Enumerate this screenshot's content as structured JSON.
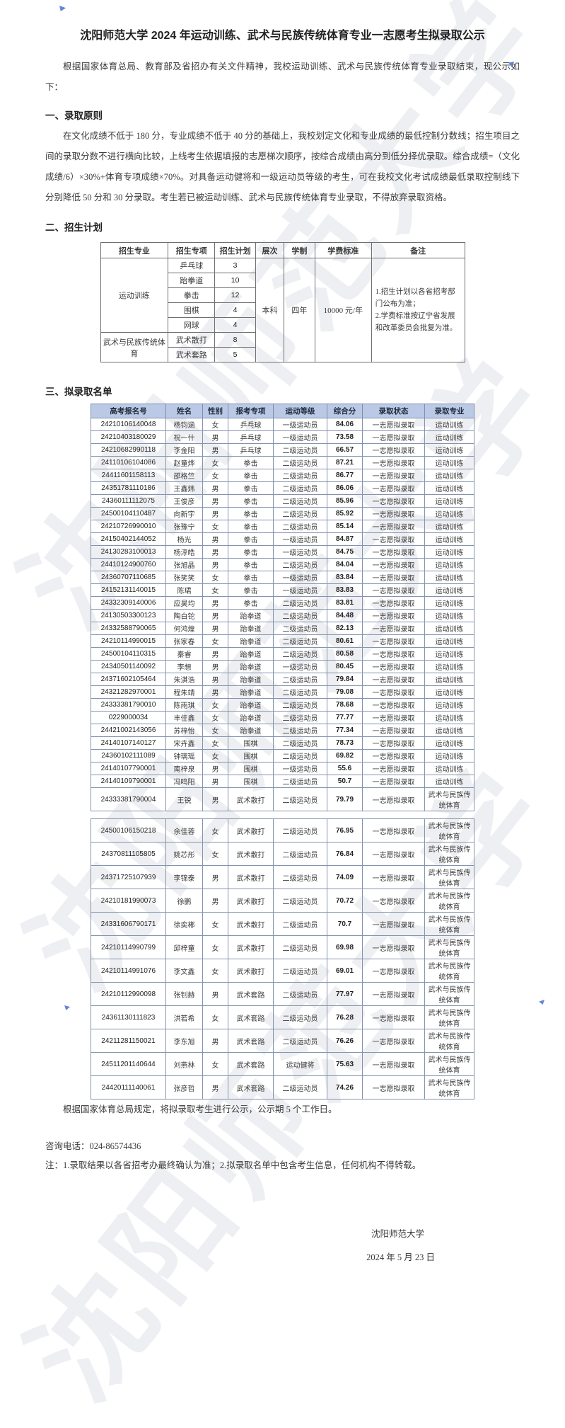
{
  "watermark_text": "沈阳师范大学",
  "accent_colors": {
    "list_header_bg": "#b9c9e6",
    "annotation_mark": "#4a6fd4"
  },
  "document": {
    "title": "沈阳师范大学 2024 年运动训练、武术与民族传统体育专业一志愿考生拟录取公示",
    "intro": "根据国家体育总局、教育部及省招办有关文件精神，我校运动训练、武术与民族传统体育专业录取结束，现公示如下：",
    "section1": {
      "heading": "一、录取原则",
      "body": "在文化成绩不低于 180 分，专业成绩不低于 40 分的基础上，我校划定文化和专业成绩的最低控制分数线；招生项目之间的录取分数不进行横向比较，上线考生依据填报的志愿梯次顺序，按综合成绩由高分到低分择优录取。综合成绩=（文化成绩/6）×30%+体育专项成绩×70%。对具备运动健将和一级运动员等级的考生，可在我校文化考试成绩最低录取控制线下分别降低 50 分和 30 分录取。考生若已被运动训练、武术与民族传统体育专业录取，不得放弃录取资格。"
    },
    "section2": {
      "heading": "二、招生计划",
      "table": {
        "headers": [
          "招生专业",
          "招生专项",
          "招生计划",
          "层次",
          "学制",
          "学费标准",
          "备注"
        ],
        "groups": [
          {
            "major": "运动训练",
            "items": [
              [
                "乒乓球",
                "3"
              ],
              [
                "跆拳道",
                "10"
              ],
              [
                "拳击",
                "12"
              ],
              [
                "围棋",
                "4"
              ],
              [
                "网球",
                "4"
              ]
            ]
          },
          {
            "major": "武术与民族传统体育",
            "items": [
              [
                "武术散打",
                "8"
              ],
              [
                "武术套路",
                "5"
              ]
            ]
          }
        ],
        "level": "本科",
        "years": "四年",
        "tuition": "10000 元/年",
        "note1": "1.招生计划以各省招考部门公布为准；",
        "note2": "2.学费标准按辽宁省发展和改革委员会批复为准。"
      }
    },
    "section3": {
      "heading": "三、拟录取名单",
      "headers": [
        "高考报名号",
        "姓名",
        "性别",
        "报考专项",
        "运动等级",
        "综合分",
        "录取状态",
        "录取专业"
      ],
      "block1": [
        [
          "24210106140048",
          "杨钧涵",
          "女",
          "乒乓球",
          "一级运动员",
          "84.06",
          "一志愿拟录取",
          "运动训练"
        ],
        [
          "24210403180029",
          "祝一什",
          "男",
          "乒乓球",
          "一级运动员",
          "73.58",
          "一志愿拟录取",
          "运动训练"
        ],
        [
          "24210682990118",
          "李金阳",
          "男",
          "乒乓球",
          "二级运动员",
          "66.57",
          "一志愿拟录取",
          "运动训练"
        ],
        [
          "24110106104086",
          "赵童烨",
          "女",
          "拳击",
          "二级运动员",
          "87.21",
          "一志愿拟录取",
          "运动训练"
        ],
        [
          "24411601158113",
          "邵格竺",
          "女",
          "拳击",
          "二级运动员",
          "86.77",
          "一志愿拟录取",
          "运动训练"
        ],
        [
          "24351781110186",
          "王鑫炜",
          "男",
          "拳击",
          "二级运动员",
          "86.06",
          "一志愿拟录取",
          "运动训练"
        ],
        [
          "24360111112075",
          "王俊彦",
          "男",
          "拳击",
          "二级运动员",
          "85.96",
          "一志愿拟录取",
          "运动训练"
        ],
        [
          "24500104110487",
          "向新宇",
          "男",
          "拳击",
          "二级运动员",
          "85.92",
          "一志愿拟录取",
          "运动训练"
        ],
        [
          "24210726990010",
          "张豫宁",
          "女",
          "拳击",
          "二级运动员",
          "85.14",
          "一志愿拟录取",
          "运动训练"
        ],
        [
          "24150402144052",
          "杨光",
          "男",
          "拳击",
          "一级运动员",
          "84.87",
          "一志愿拟录取",
          "运动训练"
        ],
        [
          "24130283100013",
          "杨淳皓",
          "男",
          "拳击",
          "一级运动员",
          "84.75",
          "一志愿拟录取",
          "运动训练"
        ],
        [
          "24410124900760",
          "张旭晶",
          "男",
          "拳击",
          "二级运动员",
          "84.04",
          "一志愿拟录取",
          "运动训练"
        ],
        [
          "24360707110685",
          "张笑笑",
          "女",
          "拳击",
          "一级运动员",
          "83.84",
          "一志愿拟录取",
          "运动训练"
        ],
        [
          "24152131140015",
          "陈珺",
          "女",
          "拳击",
          "一级运动员",
          "83.83",
          "一志愿拟录取",
          "运动训练"
        ],
        [
          "24332309140006",
          "应昊均",
          "男",
          "拳击",
          "二级运动员",
          "83.81",
          "一志愿拟录取",
          "运动训练"
        ],
        [
          "24130503300123",
          "陶白铊",
          "男",
          "跆拳道",
          "二级运动员",
          "84.48",
          "一志愿拟录取",
          "运动训练"
        ],
        [
          "24332588790065",
          "何鸿煌",
          "男",
          "跆拳道",
          "二级运动员",
          "82.13",
          "一志愿拟录取",
          "运动训练"
        ],
        [
          "24210114990015",
          "张家春",
          "女",
          "跆拳道",
          "二级运动员",
          "80.61",
          "一志愿拟录取",
          "运动训练"
        ],
        [
          "24500104110315",
          "秦睿",
          "男",
          "跆拳道",
          "二级运动员",
          "80.58",
          "一志愿拟录取",
          "运动训练"
        ],
        [
          "24340501140092",
          "李想",
          "男",
          "跆拳道",
          "一级运动员",
          "80.45",
          "一志愿拟录取",
          "运动训练"
        ],
        [
          "24371602105464",
          "朱淇浩",
          "男",
          "跆拳道",
          "二级运动员",
          "79.84",
          "一志愿拟录取",
          "运动训练"
        ],
        [
          "24321282970001",
          "程朱靖",
          "男",
          "跆拳道",
          "二级运动员",
          "79.08",
          "一志愿拟录取",
          "运动训练"
        ],
        [
          "24333381790010",
          "陈雨琪",
          "女",
          "跆拳道",
          "二级运动员",
          "78.68",
          "一志愿拟录取",
          "运动训练"
        ],
        [
          "0229000034",
          "丰佳鑫",
          "女",
          "跆拳道",
          "二级运动员",
          "77.77",
          "一志愿拟录取",
          "运动训练"
        ],
        [
          "24421002143056",
          "苏梓怡",
          "女",
          "跆拳道",
          "二级运动员",
          "77.34",
          "一志愿拟录取",
          "运动训练"
        ],
        [
          "24140107140127",
          "宋卉鑫",
          "女",
          "围棋",
          "二级运动员",
          "78.73",
          "一志愿拟录取",
          "运动训练"
        ],
        [
          "24360102111089",
          "钟璃瑶",
          "女",
          "围棋",
          "二级运动员",
          "69.82",
          "一志愿拟录取",
          "运动训练"
        ],
        [
          "24140107790001",
          "南梓泉",
          "男",
          "围棋",
          "一级运动员",
          "55.6",
          "一志愿拟录取",
          "运动训练"
        ],
        [
          "24140109790001",
          "冯鸣阳",
          "男",
          "围棋",
          "二级运动员",
          "50.7",
          "一志愿拟录取",
          "运动训练"
        ],
        [
          "24333381790004",
          "王锐",
          "男",
          "武术散打",
          "二级运动员",
          "79.79",
          "一志愿拟录取",
          "武术与民族传统体育"
        ]
      ],
      "block2": [
        [
          "24500106150218",
          "余佳蓉",
          "女",
          "武术散打",
          "二级运动员",
          "76.95",
          "一志愿拟录取",
          "武术与民族传统体育"
        ],
        [
          "24370811105805",
          "姚芯彤",
          "女",
          "武术散打",
          "二级运动员",
          "76.84",
          "一志愿拟录取",
          "武术与民族传统体育"
        ],
        [
          "24371725107939",
          "李锦泰",
          "男",
          "武术散打",
          "二级运动员",
          "74.09",
          "一志愿拟录取",
          "武术与民族传统体育"
        ],
        [
          "24210181990073",
          "徐鹏",
          "男",
          "武术散打",
          "二级运动员",
          "70.72",
          "一志愿拟录取",
          "武术与民族传统体育"
        ],
        [
          "24331606790171",
          "徐奕郴",
          "女",
          "武术散打",
          "二级运动员",
          "70.7",
          "一志愿拟录取",
          "武术与民族传统体育"
        ],
        [
          "24210114990799",
          "邱梓童",
          "女",
          "武术散打",
          "二级运动员",
          "69.98",
          "一志愿拟录取",
          "武术与民族传统体育"
        ],
        [
          "24210114991076",
          "李文鑫",
          "女",
          "武术散打",
          "二级运动员",
          "69.01",
          "一志愿拟录取",
          "武术与民族传统体育"
        ],
        [
          "24210112990098",
          "张钊赫",
          "男",
          "武术套路",
          "二级运动员",
          "77.97",
          "一志愿拟录取",
          "武术与民族传统体育"
        ],
        [
          "24361130111823",
          "洪若希",
          "女",
          "武术套路",
          "二级运动员",
          "76.28",
          "一志愿拟录取",
          "武术与民族传统体育"
        ],
        [
          "24211281150021",
          "李东旭",
          "男",
          "武术套路",
          "二级运动员",
          "76.26",
          "一志愿拟录取",
          "武术与民族传统体育"
        ],
        [
          "24511201140644",
          "刘燕林",
          "女",
          "武术套路",
          "运动健将",
          "75.63",
          "一志愿拟录取",
          "武术与民族传统体育"
        ],
        [
          "24420111140061",
          "张彦哲",
          "男",
          "武术套路",
          "二级运动员",
          "74.26",
          "一志愿拟录取",
          "武术与民族传统体育"
        ]
      ]
    },
    "footer": {
      "publicity": "根据国家体育总局规定，将拟录取考生进行公示，公示期 5 个工作日。",
      "consult": "咨询电话：024-86574436",
      "note": "注：1.录取结果以各省招考办最终确认为准；2.拟录取名单中包含考生信息，任何机构不得转载。",
      "signature": "沈阳师范大学",
      "date": "2024 年 5 月 23 日"
    }
  }
}
